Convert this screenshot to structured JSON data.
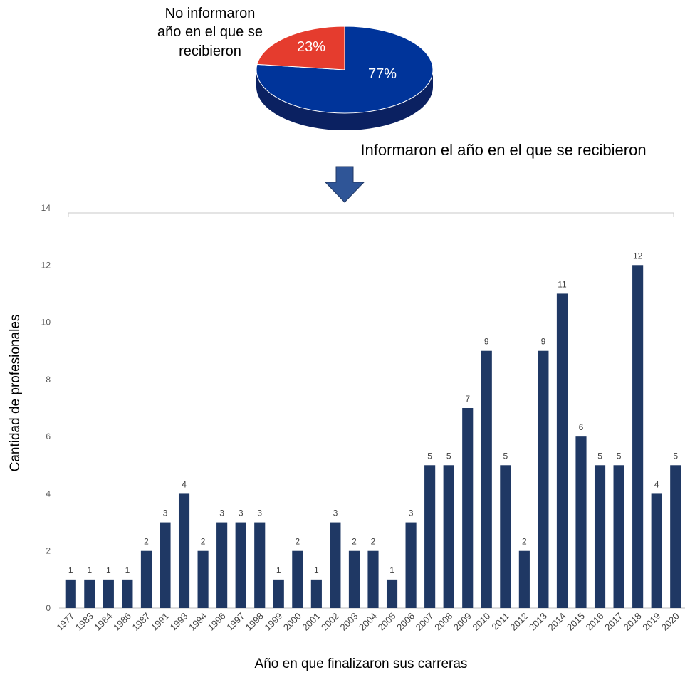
{
  "pie": {
    "annotation_lines": [
      "No informaron",
      "año en el que se",
      "recibieron"
    ],
    "caption": "Informaron el año en el que se recibieron",
    "colors": {
      "informed": "#00349a",
      "not_informed": "#e53c2e",
      "informed_side": "#0b2161"
    }
  },
  "arrow": {
    "icon": "down-arrow-icon",
    "color": "#2f5597"
  },
  "chart_data": [
    {
      "type": "pie",
      "slices": [
        {
          "label": "77%",
          "value": 77
        },
        {
          "label": "23%",
          "value": 23
        }
      ]
    },
    {
      "type": "bar",
      "categories": [
        "1977",
        "1983",
        "1984",
        "1986",
        "1987",
        "1991",
        "1993",
        "1994",
        "1996",
        "1997",
        "1998",
        "1999",
        "2000",
        "2001",
        "2002",
        "2003",
        "2004",
        "2005",
        "2006",
        "2007",
        "2008",
        "2009",
        "2010",
        "2011",
        "2012",
        "2013",
        "2014",
        "2015",
        "2016",
        "2017",
        "2018",
        "2019",
        "2020"
      ],
      "values": [
        1,
        1,
        1,
        1,
        2,
        3,
        4,
        2,
        3,
        3,
        3,
        1,
        2,
        1,
        3,
        2,
        2,
        1,
        3,
        5,
        5,
        7,
        9,
        5,
        2,
        9,
        11,
        6,
        5,
        5,
        12,
        4,
        5
      ],
      "data_labels": [
        "1",
        "1",
        "1",
        "1",
        "2",
        "3",
        "4",
        "2",
        "3",
        "3",
        "3",
        "1",
        "2",
        "1",
        "3",
        "2",
        "2",
        "1",
        "3",
        "5",
        "5",
        "7",
        "9",
        "5",
        "2",
        "9",
        "11",
        "6",
        "5",
        "5",
        "12",
        "4",
        "5"
      ],
      "yticks": [
        "0",
        "2",
        "4",
        "6",
        "8",
        "10",
        "12",
        "14"
      ],
      "ylim": [
        0,
        14
      ],
      "xlabel": "Año en que finalizaron sus carreras",
      "ylabel": "Cantidad de profesionales",
      "bar_color": "#1f3864",
      "grid": false
    }
  ]
}
